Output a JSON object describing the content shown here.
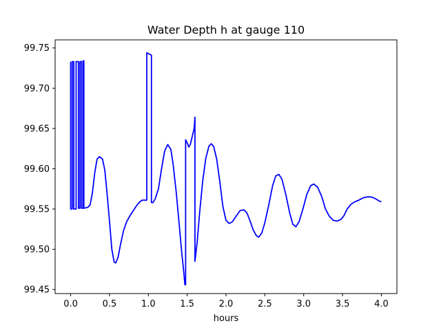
{
  "chart_data": {
    "type": "line",
    "title": "Water Depth h at gauge 110",
    "xlabel": "hours",
    "ylabel": "",
    "xlim": [
      -0.2,
      4.2
    ],
    "ylim": [
      99.445,
      99.76
    ],
    "x_ticks": [
      {
        "value": 0.0,
        "label": "0.0"
      },
      {
        "value": 0.5,
        "label": "0.5"
      },
      {
        "value": 1.0,
        "label": "1.0"
      },
      {
        "value": 1.5,
        "label": "1.5"
      },
      {
        "value": 2.0,
        "label": "2.0"
      },
      {
        "value": 2.5,
        "label": "2.5"
      },
      {
        "value": 3.0,
        "label": "3.0"
      },
      {
        "value": 3.5,
        "label": "3.5"
      },
      {
        "value": 4.0,
        "label": "4.0"
      }
    ],
    "y_ticks": [
      {
        "value": 99.45,
        "label": "99.45"
      },
      {
        "value": 99.5,
        "label": "99.50"
      },
      {
        "value": 99.55,
        "label": "99.55"
      },
      {
        "value": 99.6,
        "label": "99.60"
      },
      {
        "value": 99.65,
        "label": "99.65"
      },
      {
        "value": 99.7,
        "label": "99.70"
      },
      {
        "value": 99.75,
        "label": "99.75"
      }
    ],
    "grid": false,
    "series": [
      {
        "color": "#0000ff",
        "points": [
          [
            0.0,
            99.733
          ],
          [
            0.0,
            99.55
          ],
          [
            0.02,
            99.55
          ],
          [
            0.02,
            99.733
          ],
          [
            0.04,
            99.733
          ],
          [
            0.04,
            99.55
          ],
          [
            0.07,
            99.55
          ],
          [
            0.07,
            99.733
          ],
          [
            0.1,
            99.733
          ],
          [
            0.1,
            99.551
          ],
          [
            0.12,
            99.551
          ],
          [
            0.12,
            99.733
          ],
          [
            0.14,
            99.733
          ],
          [
            0.14,
            99.551
          ],
          [
            0.16,
            99.551
          ],
          [
            0.16,
            99.734
          ],
          [
            0.17,
            99.734
          ],
          [
            0.17,
            99.551
          ],
          [
            0.22,
            99.552
          ],
          [
            0.25,
            99.555
          ],
          [
            0.28,
            99.57
          ],
          [
            0.31,
            99.595
          ],
          [
            0.34,
            99.612
          ],
          [
            0.37,
            99.615
          ],
          [
            0.41,
            99.612
          ],
          [
            0.44,
            99.598
          ],
          [
            0.47,
            99.568
          ],
          [
            0.5,
            99.535
          ],
          [
            0.53,
            99.5
          ],
          [
            0.56,
            99.484
          ],
          [
            0.58,
            99.483
          ],
          [
            0.61,
            99.49
          ],
          [
            0.64,
            99.505
          ],
          [
            0.68,
            99.523
          ],
          [
            0.72,
            99.534
          ],
          [
            0.76,
            99.541
          ],
          [
            0.8,
            99.547
          ],
          [
            0.84,
            99.553
          ],
          [
            0.88,
            99.558
          ],
          [
            0.92,
            99.561
          ],
          [
            0.97,
            99.561
          ],
          [
            0.98,
            99.561
          ],
          [
            0.98,
            99.744
          ],
          [
            1.02,
            99.742
          ],
          [
            1.04,
            99.741
          ],
          [
            1.04,
            99.558
          ],
          [
            1.06,
            99.558
          ],
          [
            1.09,
            99.563
          ],
          [
            1.13,
            99.575
          ],
          [
            1.17,
            99.6
          ],
          [
            1.21,
            99.622
          ],
          [
            1.25,
            99.63
          ],
          [
            1.29,
            99.624
          ],
          [
            1.32,
            99.605
          ],
          [
            1.36,
            99.57
          ],
          [
            1.4,
            99.528
          ],
          [
            1.43,
            99.496
          ],
          [
            1.46,
            99.468
          ],
          [
            1.47,
            99.456
          ],
          [
            1.48,
            99.456
          ],
          [
            1.48,
            99.636
          ],
          [
            1.51,
            99.63
          ],
          [
            1.52,
            99.627
          ],
          [
            1.54,
            99.63
          ],
          [
            1.57,
            99.642
          ],
          [
            1.59,
            99.65
          ],
          [
            1.6,
            99.664
          ],
          [
            1.6,
            99.485
          ],
          [
            1.63,
            99.51
          ],
          [
            1.66,
            99.545
          ],
          [
            1.7,
            99.585
          ],
          [
            1.74,
            99.613
          ],
          [
            1.78,
            99.628
          ],
          [
            1.81,
            99.631
          ],
          [
            1.84,
            99.628
          ],
          [
            1.88,
            99.612
          ],
          [
            1.92,
            99.584
          ],
          [
            1.96,
            99.553
          ],
          [
            2.0,
            99.536
          ],
          [
            2.04,
            99.532
          ],
          [
            2.08,
            99.534
          ],
          [
            2.13,
            99.541
          ],
          [
            2.18,
            99.548
          ],
          [
            2.23,
            99.549
          ],
          [
            2.27,
            99.545
          ],
          [
            2.31,
            99.535
          ],
          [
            2.35,
            99.524
          ],
          [
            2.39,
            99.517
          ],
          [
            2.42,
            99.515
          ],
          [
            2.46,
            99.52
          ],
          [
            2.5,
            99.533
          ],
          [
            2.55,
            99.555
          ],
          [
            2.6,
            99.579
          ],
          [
            2.64,
            99.591
          ],
          [
            2.68,
            99.593
          ],
          [
            2.72,
            99.587
          ],
          [
            2.77,
            99.568
          ],
          [
            2.82,
            99.545
          ],
          [
            2.86,
            99.531
          ],
          [
            2.9,
            99.528
          ],
          [
            2.94,
            99.534
          ],
          [
            2.99,
            99.55
          ],
          [
            3.04,
            99.568
          ],
          [
            3.09,
            99.579
          ],
          [
            3.13,
            99.581
          ],
          [
            3.18,
            99.577
          ],
          [
            3.23,
            99.566
          ],
          [
            3.28,
            99.55
          ],
          [
            3.33,
            99.541
          ],
          [
            3.38,
            99.536
          ],
          [
            3.43,
            99.535
          ],
          [
            3.48,
            99.537
          ],
          [
            3.52,
            99.542
          ],
          [
            3.56,
            99.55
          ],
          [
            3.61,
            99.556
          ],
          [
            3.66,
            99.559
          ],
          [
            3.71,
            99.561
          ],
          [
            3.77,
            99.564
          ],
          [
            3.82,
            99.565
          ],
          [
            3.87,
            99.565
          ],
          [
            3.92,
            99.563
          ],
          [
            3.97,
            99.56
          ],
          [
            4.0,
            99.559
          ]
        ]
      }
    ]
  }
}
